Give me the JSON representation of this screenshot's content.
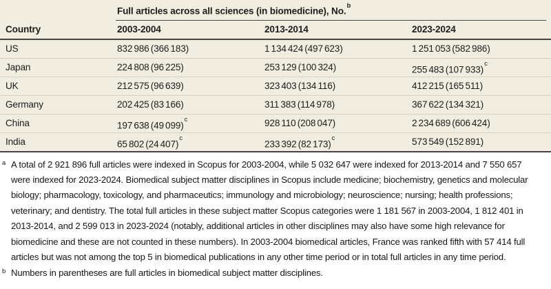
{
  "table": {
    "spanner": {
      "label": "Full articles across all sciences (in biomedicine), No.",
      "sup": "b"
    },
    "columns": [
      "Country",
      "2003-2004",
      "2013-2014",
      "2023-2024"
    ],
    "rows": [
      {
        "country": "US",
        "cells": [
          {
            "v": "832 986 (366 183)"
          },
          {
            "v": "1 134 424 (497 623)"
          },
          {
            "v": "1 251 053 (582 986)"
          }
        ]
      },
      {
        "country": "Japan",
        "cells": [
          {
            "v": "224 808 (96 225)"
          },
          {
            "v": "253 129 (100 324)"
          },
          {
            "v": "255 483 (107 933)",
            "sup": "c"
          }
        ]
      },
      {
        "country": "UK",
        "cells": [
          {
            "v": "212 575 (96 639)"
          },
          {
            "v": "323 403 (134 116)"
          },
          {
            "v": "412 215 (165 511)"
          }
        ]
      },
      {
        "country": "Germany",
        "cells": [
          {
            "v": "202 425 (83 166)"
          },
          {
            "v": "311 383 (114 978)"
          },
          {
            "v": "367 622 (134 321)"
          }
        ]
      },
      {
        "country": "China",
        "cells": [
          {
            "v": "197 638 (49 099)",
            "sup": "c"
          },
          {
            "v": "928 110 (208 047)"
          },
          {
            "v": "2 234 689 (606 424)"
          }
        ]
      },
      {
        "country": "India",
        "cells": [
          {
            "v": "65 802 (24 407)",
            "sup": "c"
          },
          {
            "v": "233 392 (82 173)",
            "sup": "c"
          },
          {
            "v": "573 549 (152 891)"
          }
        ]
      }
    ]
  },
  "footnotes": [
    {
      "marker": "a",
      "text": "A total of 2 921 896 full articles were indexed in Scopus for 2003-2004, while 5 032 647 were indexed for 2013-2014 and 7 550 657 were indexed for 2023-2024. Biomedical subject matter disciplines in Scopus include medicine; biochemistry, genetics and molecular biology; pharmacology, toxicology, and pharmaceutics; immunology and microbiology; neuroscience; nursing; health professions; veterinary; and dentistry. The total full articles in these subject matter Scopus categories were 1 181 567 in 2003-2004, 1 812 401 in 2013-2014, and 2 599 013 in 2023-2024 (notably, additional articles in other disciplines may also have some high relevance for biomedicine and these are not counted in these numbers). In 2003-2004 biomedical articles, France was ranked fifth with 57 414 full articles but was not among the top 5 in biomedical publications in any other time period or in total full articles in any time period."
    },
    {
      "marker": "b",
      "text": "Numbers in parentheses are full articles in biomedical subject matter disciplines."
    }
  ],
  "colors": {
    "table_background": "#f1eee1",
    "rule_dark": "#424242",
    "row_divider": "#d8d4c2",
    "text": "#1c1c1c"
  }
}
